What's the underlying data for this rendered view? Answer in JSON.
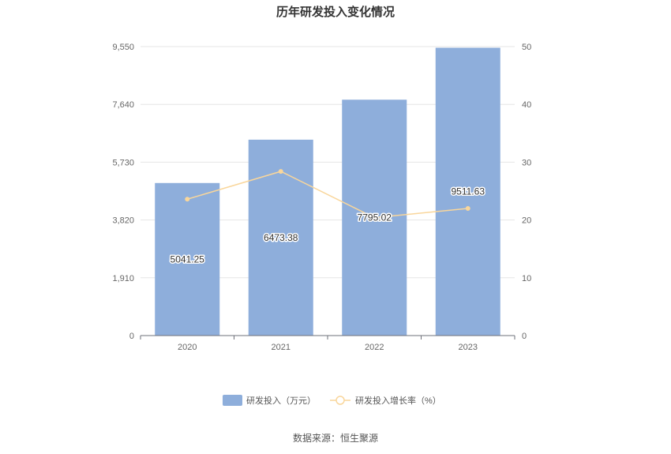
{
  "chart_data": {
    "type": "bar",
    "title": "历年研发投入变化情况",
    "categories": [
      "2020",
      "2021",
      "2022",
      "2023"
    ],
    "series": [
      {
        "name": "研发投入（万元）",
        "type": "bar",
        "axis": "left",
        "values": [
          5041.25,
          6473.38,
          7795.02,
          9511.63
        ],
        "labels": [
          "5041.25",
          "6473.38",
          "7795.02",
          "9511.63"
        ],
        "color": "#8eaedb"
      },
      {
        "name": "研发投入增长率（%）",
        "type": "line",
        "axis": "right",
        "values": [
          23.6,
          28.4,
          20.4,
          22.0
        ],
        "color": "#f9d69b"
      }
    ],
    "y_left": {
      "ticks": [
        "0",
        "1,910",
        "3,820",
        "5,730",
        "7,640",
        "9,550"
      ],
      "min": 0,
      "max": 9550
    },
    "y_right": {
      "ticks": [
        "0",
        "10",
        "20",
        "30",
        "40",
        "50"
      ],
      "min": 0,
      "max": 50
    },
    "grid": true,
    "legend_position": "bottom"
  },
  "source": "数据来源：恒生聚源"
}
